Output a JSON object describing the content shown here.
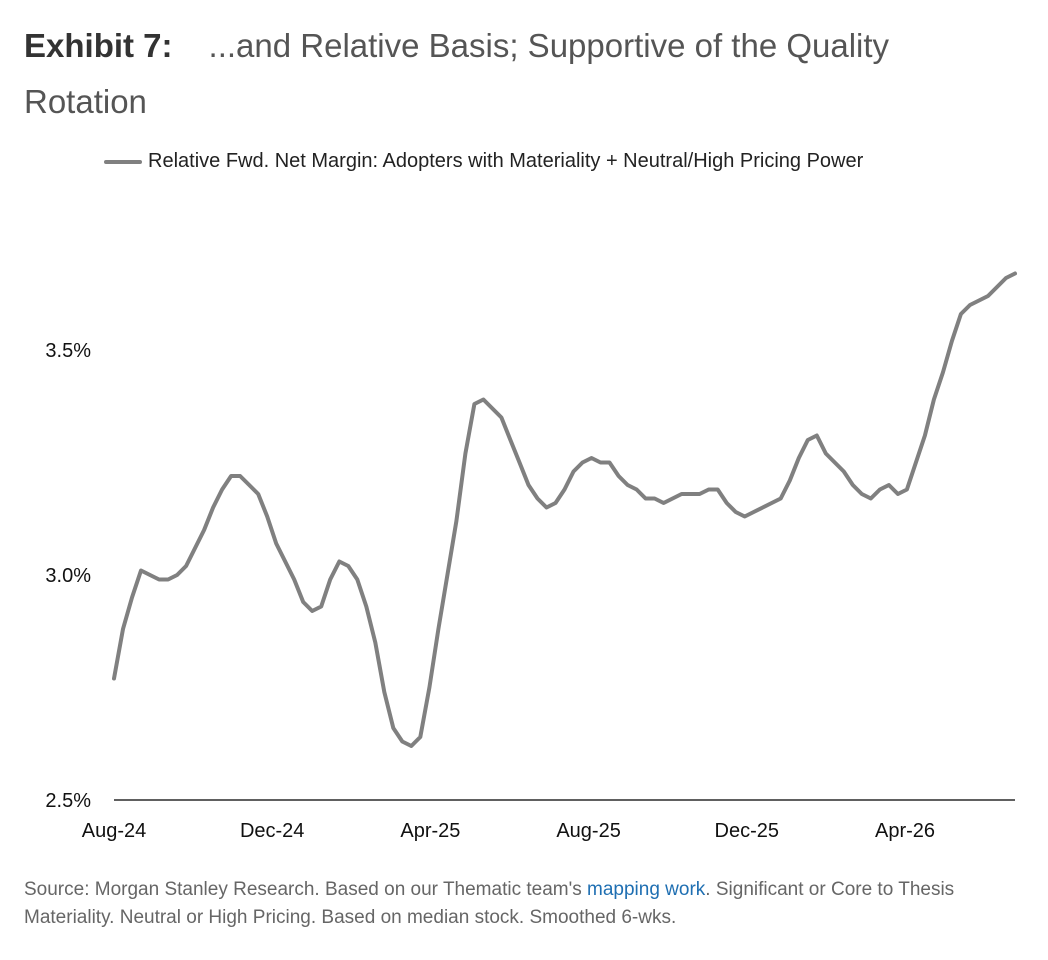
{
  "exhibit": {
    "label": "Exhibit 7:",
    "title": "...and Relative Basis; Supportive of the Quality Rotation"
  },
  "source": {
    "prefix": "Source: Morgan Stanley Research. Based on our Thematic team's ",
    "link": "mapping work",
    "suffix": ". Significant or Core to Thesis Materiality. Neutral or High Pricing. Based on median stock. Smoothed 6-wks."
  },
  "colors": {
    "line": "#808080",
    "axis": "#000000",
    "link": "#1f6fb2"
  },
  "chart_data": {
    "type": "line",
    "xlabel": "",
    "ylabel": "",
    "x_ticks": [
      "Aug-24",
      "Dec-24",
      "Apr-25",
      "Aug-25",
      "Dec-25",
      "Apr-26"
    ],
    "y_ticks": [
      "2.5%",
      "3.0%",
      "3.5%"
    ],
    "ylim": [
      2.5,
      3.8
    ],
    "grid": false,
    "legend_position": "top",
    "series": [
      {
        "name": "Relative Fwd. Net Margin: Adopters with Materiality + Neutral/High Pricing Power",
        "x_start": "Aug-24",
        "step": "weekly",
        "values": [
          2.77,
          2.88,
          2.95,
          3.01,
          3.0,
          2.99,
          2.99,
          3.0,
          3.02,
          3.06,
          3.1,
          3.15,
          3.19,
          3.22,
          3.22,
          3.2,
          3.18,
          3.13,
          3.07,
          3.03,
          2.99,
          2.94,
          2.92,
          2.93,
          2.99,
          3.03,
          3.02,
          2.99,
          2.93,
          2.85,
          2.74,
          2.66,
          2.63,
          2.62,
          2.64,
          2.75,
          2.88,
          3.0,
          3.12,
          3.27,
          3.38,
          3.39,
          3.37,
          3.35,
          3.3,
          3.25,
          3.2,
          3.17,
          3.15,
          3.16,
          3.19,
          3.23,
          3.25,
          3.26,
          3.25,
          3.25,
          3.22,
          3.2,
          3.19,
          3.17,
          3.17,
          3.16,
          3.17,
          3.18,
          3.18,
          3.18,
          3.19,
          3.19,
          3.16,
          3.14,
          3.13,
          3.14,
          3.15,
          3.16,
          3.17,
          3.21,
          3.26,
          3.3,
          3.31,
          3.27,
          3.25,
          3.23,
          3.2,
          3.18,
          3.17,
          3.19,
          3.2,
          3.18,
          3.19,
          3.25,
          3.31,
          3.39,
          3.45,
          3.52,
          3.58,
          3.6,
          3.61,
          3.62,
          3.64,
          3.66,
          3.67
        ]
      }
    ]
  }
}
